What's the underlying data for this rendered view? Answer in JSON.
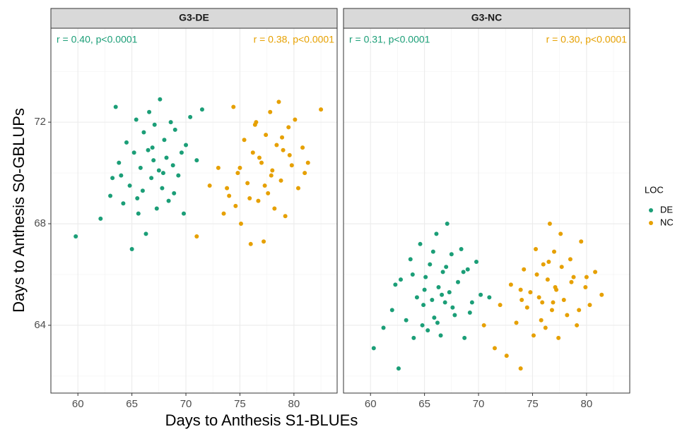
{
  "chart_data": {
    "type": "scatter",
    "xlabel": "Days to Anthesis S1-BLUEs",
    "ylabel": "Days to Anthesis S0-GBLUPs",
    "legend_title": "LOC",
    "legend": "right",
    "grid": true,
    "xlim": [
      57.5,
      84
    ],
    "ylim": [
      61.33,
      75.7
    ],
    "xticks": [
      60,
      65,
      70,
      75,
      80
    ],
    "yticks": [
      64,
      68,
      72
    ],
    "xminorticks": [
      57.5,
      62.5,
      67.5,
      72.5,
      77.5,
      82.5
    ],
    "yminorticks": [
      62,
      66,
      70,
      74
    ],
    "series": [
      {
        "name": "DE",
        "color": "#1b9e77"
      },
      {
        "name": "NC",
        "color": "#e6a000"
      }
    ],
    "facets": [
      {
        "title": "G3-DE",
        "series": [
          {
            "annotation": "r = 0.40, p<0.0001",
            "x": [
              59.8,
              62.1,
              63.0,
              63.5,
              63.8,
              64.2,
              64.5,
              64.8,
              65.0,
              65.2,
              65.4,
              65.6,
              65.8,
              66.0,
              66.1,
              66.3,
              66.5,
              66.6,
              66.8,
              67.0,
              67.1,
              67.3,
              67.5,
              67.6,
              67.8,
              68.0,
              68.2,
              68.4,
              68.6,
              68.8,
              69.0,
              69.3,
              69.6,
              70.0,
              70.4,
              71.0,
              71.5,
              64.0,
              65.5,
              66.9,
              67.9,
              68.9,
              63.2,
              69.8
            ],
            "values": [
              67.5,
              68.2,
              69.1,
              72.6,
              70.4,
              68.8,
              71.2,
              69.5,
              67.0,
              70.8,
              72.1,
              68.4,
              70.2,
              69.3,
              71.6,
              67.6,
              70.9,
              72.4,
              69.8,
              70.5,
              71.9,
              68.6,
              70.1,
              72.9,
              69.4,
              71.3,
              70.6,
              68.9,
              72.0,
              70.3,
              71.7,
              69.9,
              70.8,
              71.1,
              72.2,
              70.5,
              72.5,
              69.9,
              69.0,
              71.0,
              70.0,
              69.2,
              69.8,
              68.4
            ]
          },
          {
            "annotation": "r = 0.38, p<0.0001",
            "x": [
              71.0,
              72.2,
              73.0,
              73.5,
              74.0,
              74.4,
              74.8,
              75.1,
              75.4,
              75.7,
              76.0,
              76.2,
              76.5,
              76.7,
              77.0,
              77.2,
              77.4,
              77.6,
              77.8,
              78.0,
              78.2,
              78.4,
              78.6,
              78.8,
              79.0,
              79.2,
              79.5,
              79.8,
              80.1,
              80.4,
              80.8,
              81.3,
              82.5,
              75.9,
              76.8,
              77.9,
              78.9,
              74.6,
              79.6,
              73.8,
              81.0,
              76.4,
              77.3,
              75.0
            ],
            "values": [
              67.5,
              69.5,
              70.2,
              68.4,
              69.1,
              72.6,
              70.0,
              68.0,
              71.3,
              69.6,
              67.2,
              70.8,
              72.0,
              68.9,
              70.4,
              67.3,
              71.5,
              69.2,
              72.4,
              70.1,
              68.6,
              71.1,
              72.8,
              69.7,
              70.9,
              68.3,
              71.8,
              70.3,
              72.1,
              69.4,
              71.0,
              70.4,
              72.5,
              69.0,
              70.6,
              69.9,
              71.4,
              68.7,
              70.7,
              69.4,
              70.0,
              71.9,
              69.5,
              70.2
            ]
          }
        ]
      },
      {
        "title": "G3-NC",
        "series": [
          {
            "annotation": "r = 0.31, p<0.0001",
            "x": [
              60.3,
              61.2,
              62.0,
              62.6,
              62.8,
              63.3,
              63.7,
              64.0,
              64.3,
              64.6,
              64.9,
              65.1,
              65.3,
              65.5,
              65.7,
              65.9,
              66.1,
              66.3,
              66.5,
              66.7,
              66.9,
              67.1,
              67.3,
              67.5,
              67.8,
              68.1,
              68.4,
              68.7,
              69.0,
              69.4,
              69.8,
              70.2,
              71.0,
              63.9,
              64.8,
              65.8,
              66.6,
              67.6,
              68.6,
              62.3,
              69.2,
              65.0,
              66.2,
              67.0
            ],
            "values": [
              63.1,
              63.9,
              64.6,
              62.3,
              65.8,
              64.2,
              66.6,
              63.5,
              65.1,
              67.2,
              64.8,
              65.9,
              63.8,
              66.4,
              65.0,
              64.3,
              67.6,
              65.5,
              63.6,
              66.1,
              64.9,
              68.0,
              65.3,
              66.8,
              64.4,
              65.7,
              67.0,
              63.5,
              66.2,
              64.9,
              66.5,
              65.2,
              65.1,
              66.0,
              64.0,
              66.9,
              65.2,
              64.7,
              66.1,
              65.6,
              64.5,
              65.4,
              64.1,
              66.3
            ]
          },
          {
            "annotation": "r = 0.30, p<0.0001",
            "x": [
              70.5,
              71.5,
              72.0,
              72.6,
              73.0,
              73.5,
              73.9,
              74.2,
              74.5,
              74.8,
              75.1,
              75.3,
              75.6,
              75.8,
              76.0,
              76.2,
              76.4,
              76.6,
              76.8,
              77.0,
              77.2,
              77.4,
              77.6,
              77.9,
              78.2,
              78.5,
              78.8,
              79.1,
              79.5,
              79.9,
              80.3,
              80.8,
              81.4,
              74.0,
              75.4,
              76.9,
              77.7,
              78.6,
              79.3,
              73.9,
              80.0,
              75.9,
              76.5,
              77.1
            ],
            "values": [
              64.0,
              63.1,
              64.8,
              62.8,
              65.6,
              64.1,
              62.3,
              66.2,
              64.7,
              65.3,
              63.6,
              67.0,
              65.1,
              64.2,
              66.4,
              63.9,
              65.8,
              68.0,
              64.6,
              66.9,
              65.4,
              63.5,
              67.6,
              65.0,
              64.4,
              66.6,
              65.9,
              64.0,
              67.3,
              65.5,
              64.8,
              66.1,
              65.2,
              65.0,
              66.0,
              64.9,
              66.3,
              65.7,
              64.6,
              65.4,
              65.9,
              64.9,
              66.5,
              65.5
            ]
          }
        ]
      }
    ]
  }
}
